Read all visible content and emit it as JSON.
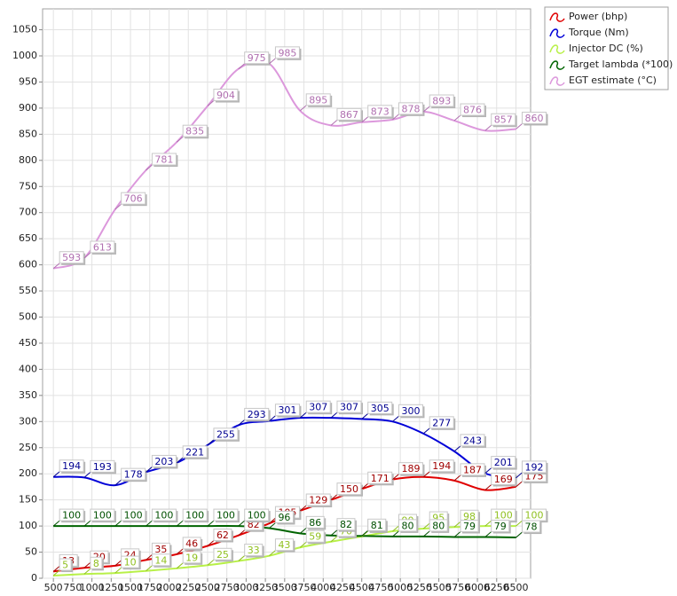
{
  "chart_data": {
    "type": "line",
    "x": [
      500,
      900,
      1300,
      1700,
      2100,
      2500,
      2900,
      3300,
      3700,
      4100,
      4500,
      4900,
      5300,
      5700,
      6100,
      6500
    ],
    "series": [
      {
        "name": "Power (bhp)",
        "color": "#e00000",
        "label_color": "#a00000",
        "values": [
          13,
          20,
          24,
          35,
          46,
          62,
          82,
          105,
          129,
          150,
          171,
          189,
          194,
          187,
          169,
          175
        ]
      },
      {
        "name": "Torque (Nm)",
        "color": "#0000d8",
        "label_color": "#000090",
        "values": [
          194,
          193,
          178,
          203,
          221,
          255,
          293,
          301,
          307,
          307,
          305,
          300,
          277,
          243,
          201,
          192
        ]
      },
      {
        "name": "Injector DC (%)",
        "color": "#b8f048",
        "label_color": "#90c020",
        "values": [
          5,
          8,
          10,
          14,
          19,
          25,
          33,
          43,
          59,
          70,
          80,
          90,
          95,
          98,
          100,
          100
        ]
      },
      {
        "name": "Target lambda (*100)",
        "color": "#006400",
        "label_color": "#005000",
        "values": [
          100,
          100,
          100,
          100,
          100,
          100,
          100,
          96,
          86,
          82,
          81,
          80,
          80,
          79,
          79,
          78
        ]
      },
      {
        "name": "EGT estimate (°C)",
        "color": "#dc98dc",
        "label_color": "#b070b0",
        "values": [
          593,
          613,
          706,
          781,
          835,
          904,
          975,
          985,
          895,
          867,
          873,
          878,
          893,
          876,
          857,
          860
        ]
      }
    ],
    "xlim": [
      360,
      6690
    ],
    "xticks": [
      500,
      750,
      1000,
      1250,
      1500,
      1750,
      2000,
      2250,
      2500,
      2750,
      3000,
      3250,
      3500,
      3750,
      4000,
      4250,
      4500,
      4750,
      5000,
      5250,
      5500,
      5750,
      6000,
      6250,
      6500
    ],
    "ylim": [
      0,
      1090
    ],
    "yticks": [
      0,
      50,
      100,
      150,
      200,
      250,
      300,
      350,
      400,
      450,
      500,
      550,
      600,
      650,
      700,
      750,
      800,
      850,
      900,
      950,
      1000,
      1050
    ],
    "grid": true,
    "legend": "top-right"
  }
}
